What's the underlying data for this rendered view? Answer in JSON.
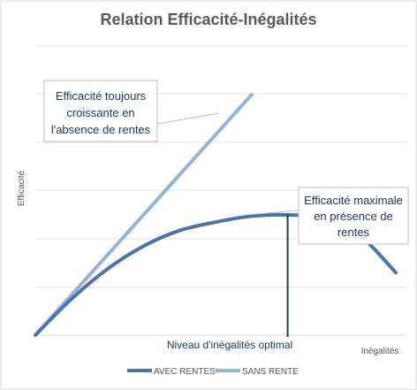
{
  "chart_data": {
    "type": "line",
    "title": "Relation Efficacité-Inégalités",
    "xlabel": "Inégalités",
    "ylabel": "Efficacité",
    "grid": true,
    "legend": "bottom",
    "series": [
      {
        "name": "AVEC RENTES",
        "color": "#4a74ad",
        "x": [
          0,
          0.1,
          0.2,
          0.3,
          0.4,
          0.5,
          0.6,
          0.7,
          0.8,
          0.9,
          1.0
        ],
        "y": [
          0.0,
          0.3,
          0.55,
          0.74,
          0.87,
          0.94,
          0.99,
          1.0,
          0.97,
          0.83,
          0.52
        ]
      },
      {
        "name": "SANS RENTE",
        "color": "#95b3d7",
        "x": [
          0,
          0.6
        ],
        "y": [
          0.0,
          2.0
        ]
      }
    ],
    "annotations": [
      {
        "id": "no-rent",
        "lines": [
          "Efficacité toujours",
          "croissante en",
          "l'absence de rentes"
        ]
      },
      {
        "id": "max",
        "lines": [
          "Efficacité maximale",
          "en présence de",
          "rentes"
        ]
      },
      {
        "id": "optimal",
        "lines": [
          "Niveau d'inégalités optimal"
        ]
      }
    ]
  }
}
